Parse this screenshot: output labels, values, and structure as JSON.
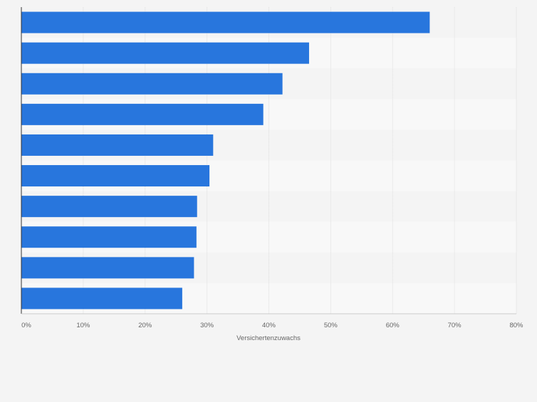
{
  "chart_data": {
    "type": "bar",
    "orientation": "horizontal",
    "categories": [
      "",
      "",
      "",
      "",
      "",
      "",
      "",
      "",
      "",
      ""
    ],
    "values": [
      66,
      46.5,
      42.2,
      39.1,
      31,
      30.4,
      28.4,
      28.3,
      27.9,
      26
    ],
    "xlabel": "Versichertenzuwachs",
    "ylabel": "",
    "xlim": [
      0,
      80
    ],
    "x_ticks": [
      "0%",
      "10%",
      "20%",
      "30%",
      "40%",
      "50%",
      "60%",
      "70%",
      "80%"
    ],
    "grid": true,
    "colors": {
      "bar": "#2876dd",
      "band_dark": "#f4f4f4",
      "band_light": "#f8f8f8",
      "grid": "#dddddd",
      "axis": "#333333",
      "text": "#666666"
    }
  }
}
